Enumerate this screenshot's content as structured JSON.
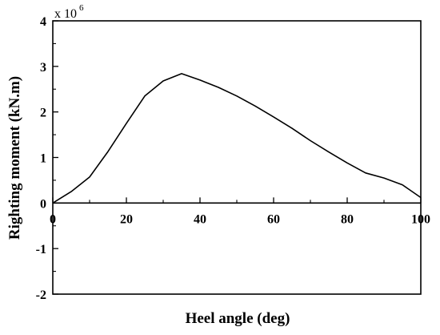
{
  "chart_data": {
    "type": "line",
    "xlabel": "Heel angle (deg)",
    "ylabel": "Righting moment (kN.m)",
    "y_multiplier_label": "x 10",
    "y_multiplier_exponent": "6",
    "xlim": [
      0,
      100
    ],
    "ylim": [
      -2,
      4
    ],
    "x_ticks": [
      0,
      20,
      40,
      60,
      80,
      100
    ],
    "y_ticks": [
      -2,
      -1,
      0,
      1,
      2,
      3,
      4
    ],
    "grid": false,
    "series": [
      {
        "x": [
          0,
          5,
          10,
          15,
          20,
          25,
          30,
          35,
          40,
          45,
          50,
          55,
          60,
          65,
          70,
          75,
          80,
          85,
          90,
          95,
          100
        ],
        "y": [
          0,
          0.25,
          0.57,
          1.13,
          1.75,
          2.35,
          2.68,
          2.84,
          2.7,
          2.54,
          2.35,
          2.13,
          1.89,
          1.64,
          1.37,
          1.12,
          0.88,
          0.66,
          0.55,
          0.4,
          0.12
        ]
      }
    ]
  }
}
